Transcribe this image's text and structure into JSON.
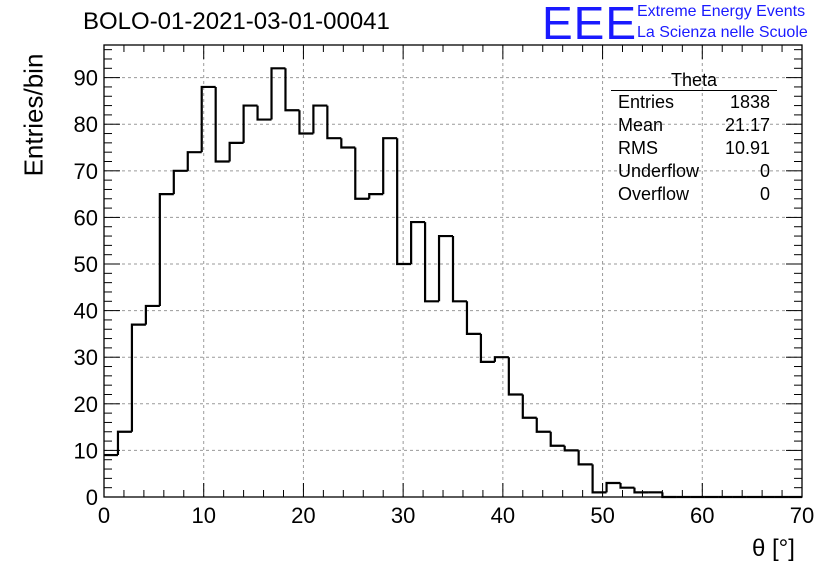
{
  "chart_data": {
    "type": "bar",
    "style": "step-histogram",
    "title": "BOLO-01-2021-03-01-00041",
    "xlabel": "θ [°]",
    "ylabel": "Entries/bin",
    "xlim": [
      0,
      70
    ],
    "ylim": [
      0,
      97
    ],
    "grid": true,
    "bin_width": 1.4,
    "x_ticks": [
      "0",
      "10",
      "20",
      "30",
      "40",
      "50",
      "60",
      "70"
    ],
    "y_ticks": [
      "0",
      "10",
      "20",
      "30",
      "40",
      "50",
      "60",
      "70",
      "80",
      "90"
    ],
    "bin_edges_start": 0,
    "values": [
      9,
      14,
      37,
      41,
      65,
      70,
      74,
      88,
      72,
      76,
      84,
      81,
      92,
      83,
      78,
      84,
      77,
      75,
      64,
      65,
      77,
      50,
      59,
      42,
      56,
      42,
      35,
      29,
      30,
      22,
      17,
      14,
      11,
      10,
      7,
      1,
      3,
      2,
      1,
      1,
      0,
      0,
      0,
      0,
      0,
      0,
      0,
      0,
      0,
      0
    ],
    "line_color": "#000000",
    "stats_box": {
      "title": "Theta",
      "rows": [
        {
          "label": "Entries",
          "value": "1838"
        },
        {
          "label": "Mean",
          "value": "21.17"
        },
        {
          "label": "RMS",
          "value": "10.91"
        },
        {
          "label": "Underflow",
          "value": "0"
        },
        {
          "label": "Overflow",
          "value": "0"
        }
      ]
    }
  },
  "logo": {
    "mark": "EEE",
    "line1": "Extreme Energy Events",
    "line2": "La Scienza nelle Scuole",
    "color": "#1a1aff"
  }
}
